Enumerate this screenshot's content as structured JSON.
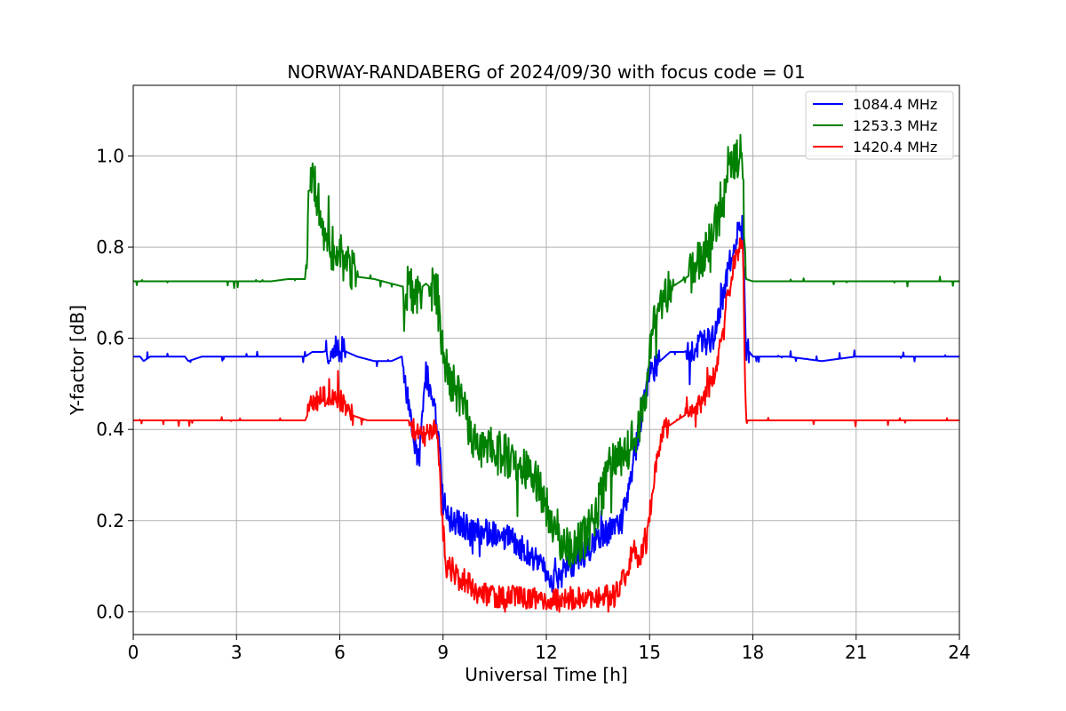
{
  "chart_data": {
    "type": "line",
    "title": "NORWAY-RANDABERG of 2024/09/30 with focus code = 01",
    "xlabel": "Universal Time [h]",
    "ylabel": "Y-factor [dB]",
    "xlim": [
      0,
      24
    ],
    "ylim": [
      -0.05,
      1.155
    ],
    "xticks": [
      0,
      3,
      6,
      9,
      12,
      15,
      18,
      21,
      24
    ],
    "xtick_labels": [
      "0",
      "3",
      "6",
      "9",
      "12",
      "15",
      "18",
      "21",
      "24"
    ],
    "yticks": [
      0.0,
      0.2,
      0.4,
      0.6,
      0.8,
      1.0
    ],
    "ytick_labels": [
      "0.0",
      "0.2",
      "0.4",
      "0.6",
      "0.8",
      "1.0"
    ],
    "grid": true,
    "legend_position": "top-right",
    "series": [
      {
        "name": "1084.4 MHz",
        "color": "#0000ff",
        "noise": 0.03,
        "x": [
          0,
          0.2,
          0.3,
          0.5,
          1.5,
          1.6,
          2.0,
          4.5,
          5.0,
          5.2,
          5.5,
          6.0,
          6.2,
          6.5,
          7.0,
          7.5,
          7.8,
          8.0,
          8.1,
          8.3,
          8.5,
          8.7,
          8.9,
          9.0,
          9.2,
          9.5,
          10.0,
          10.5,
          11.0,
          11.3,
          11.6,
          11.9,
          12.2,
          12.4,
          12.7,
          13.0,
          13.3,
          13.6,
          13.9,
          14.2,
          14.4,
          14.6,
          14.8,
          15.0,
          15.3,
          15.6,
          16.0,
          16.3,
          16.6,
          16.9,
          17.1,
          17.3,
          17.5,
          17.7,
          17.8,
          18.0,
          19.0,
          20.0,
          21.0,
          22.0,
          23.0,
          24.0
        ],
        "y": [
          0.56,
          0.56,
          0.55,
          0.56,
          0.56,
          0.55,
          0.56,
          0.56,
          0.56,
          0.57,
          0.57,
          0.58,
          0.57,
          0.56,
          0.55,
          0.55,
          0.56,
          0.45,
          0.4,
          0.33,
          0.52,
          0.48,
          0.35,
          0.24,
          0.2,
          0.19,
          0.18,
          0.17,
          0.16,
          0.14,
          0.12,
          0.09,
          0.07,
          0.08,
          0.1,
          0.12,
          0.14,
          0.17,
          0.18,
          0.2,
          0.28,
          0.36,
          0.45,
          0.52,
          0.55,
          0.57,
          0.57,
          0.58,
          0.59,
          0.6,
          0.68,
          0.76,
          0.82,
          0.85,
          0.58,
          0.56,
          0.56,
          0.55,
          0.56,
          0.56,
          0.56,
          0.56
        ]
      },
      {
        "name": "1253.3 MHz",
        "color": "#008000",
        "noise": 0.05,
        "x": [
          0,
          1.0,
          2.0,
          3.0,
          4.0,
          4.5,
          5.0,
          5.1,
          5.2,
          5.3,
          5.5,
          5.7,
          6.0,
          6.2,
          6.5,
          7.0,
          7.5,
          8.0,
          8.2,
          8.5,
          8.8,
          9.0,
          9.2,
          9.5,
          9.8,
          10.0,
          10.5,
          11.0,
          11.3,
          11.6,
          11.9,
          12.2,
          12.5,
          12.8,
          13.1,
          13.4,
          13.7,
          14.0,
          14.3,
          14.6,
          14.9,
          15.1,
          15.4,
          15.8,
          16.2,
          16.5,
          16.8,
          17.0,
          17.2,
          17.4,
          17.6,
          17.7,
          17.8,
          18.0,
          19.0,
          20.0,
          21.0,
          22.0,
          23.0,
          24.0
        ],
        "y": [
          0.725,
          0.725,
          0.725,
          0.725,
          0.725,
          0.73,
          0.73,
          0.9,
          0.98,
          0.92,
          0.85,
          0.8,
          0.79,
          0.76,
          0.735,
          0.73,
          0.72,
          0.71,
          0.7,
          0.72,
          0.7,
          0.56,
          0.52,
          0.46,
          0.4,
          0.37,
          0.35,
          0.34,
          0.33,
          0.3,
          0.26,
          0.18,
          0.15,
          0.14,
          0.16,
          0.21,
          0.28,
          0.33,
          0.35,
          0.38,
          0.48,
          0.62,
          0.7,
          0.72,
          0.74,
          0.77,
          0.82,
          0.86,
          0.96,
          0.99,
          1.0,
          0.97,
          0.73,
          0.725,
          0.725,
          0.725,
          0.725,
          0.725,
          0.725,
          0.725
        ]
      },
      {
        "name": "1420.4 MHz",
        "color": "#ff0000",
        "noise": 0.025,
        "x": [
          0,
          1.0,
          2.0,
          3.0,
          4.0,
          5.0,
          5.2,
          5.5,
          5.8,
          6.1,
          6.4,
          6.8,
          7.5,
          8.0,
          8.2,
          8.4,
          8.6,
          8.8,
          8.9,
          9.0,
          9.1,
          9.4,
          9.8,
          10.0,
          10.5,
          11.0,
          11.5,
          12.0,
          12.5,
          13.0,
          13.5,
          14.0,
          14.3,
          14.5,
          14.7,
          14.9,
          15.1,
          15.4,
          15.8,
          16.2,
          16.6,
          16.9,
          17.1,
          17.3,
          17.6,
          17.7,
          17.8,
          18.0,
          19.0,
          20.0,
          21.0,
          22.0,
          23.0,
          24.0
        ],
        "y": [
          0.42,
          0.42,
          0.42,
          0.42,
          0.42,
          0.42,
          0.46,
          0.47,
          0.47,
          0.46,
          0.43,
          0.42,
          0.42,
          0.42,
          0.39,
          0.38,
          0.4,
          0.41,
          0.3,
          0.18,
          0.1,
          0.08,
          0.06,
          0.04,
          0.035,
          0.03,
          0.03,
          0.025,
          0.03,
          0.03,
          0.035,
          0.035,
          0.08,
          0.13,
          0.12,
          0.15,
          0.28,
          0.4,
          0.42,
          0.44,
          0.47,
          0.52,
          0.62,
          0.72,
          0.8,
          0.82,
          0.42,
          0.42,
          0.42,
          0.42,
          0.42,
          0.42,
          0.42,
          0.42
        ]
      }
    ]
  }
}
